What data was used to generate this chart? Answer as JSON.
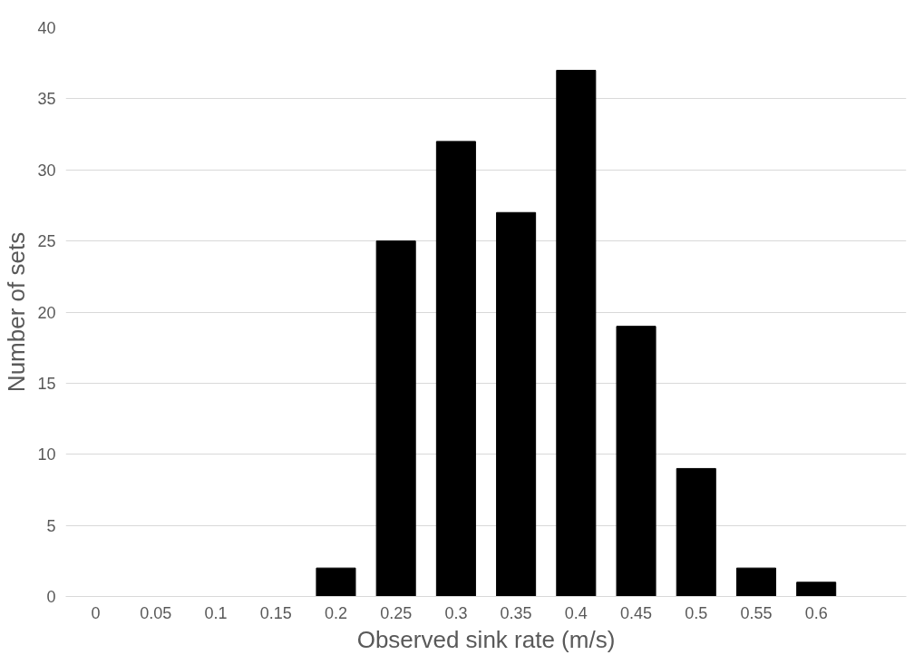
{
  "chart_data": {
    "type": "bar",
    "xlabel": "Observed sink rate (m/s)",
    "ylabel": "Number of sets",
    "categories": [
      "0",
      "0.05",
      "0.1",
      "0.15",
      "0.2",
      "0.25",
      "0.3",
      "0.35",
      "0.4",
      "0.45",
      "0.5",
      "0.55",
      "0.6",
      null
    ],
    "values": [
      0,
      0,
      0,
      0,
      2,
      25,
      32,
      27,
      37,
      19,
      9,
      2,
      1,
      0
    ],
    "color": "#000000",
    "ylim": [
      0,
      40
    ],
    "yticks": [
      0,
      5,
      10,
      15,
      20,
      25,
      30,
      35,
      40
    ],
    "grid": "y"
  }
}
